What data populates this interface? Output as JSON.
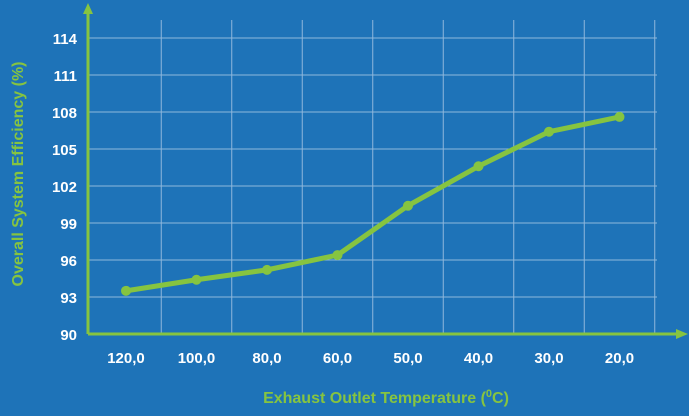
{
  "chart_data": {
    "type": "line",
    "title": "",
    "xlabel": "Exhaust Outlet Temperature (",
    "xlabel_sup": "0",
    "xlabel_end": "C)",
    "ylabel": "Overall System Efficiency (%)",
    "categories": [
      "120,0",
      "100,0",
      "80,0",
      "60,0",
      "50,0",
      "40,0",
      "30,0",
      "20,0"
    ],
    "values": [
      93.5,
      94.4,
      95.2,
      96.4,
      100.4,
      103.6,
      106.4,
      107.6
    ],
    "yticks": [
      "90",
      "93",
      "96",
      "99",
      "102",
      "105",
      "108",
      "111",
      "114"
    ],
    "ylim": [
      90,
      114
    ],
    "grid": true,
    "legend": "none",
    "colors": {
      "background": "#1e73b8",
      "grid": "#8fb8dc",
      "axis": "#86c440",
      "line": "#86c440",
      "tick_text": "#ffffff",
      "axis_title": "#86c440"
    }
  }
}
